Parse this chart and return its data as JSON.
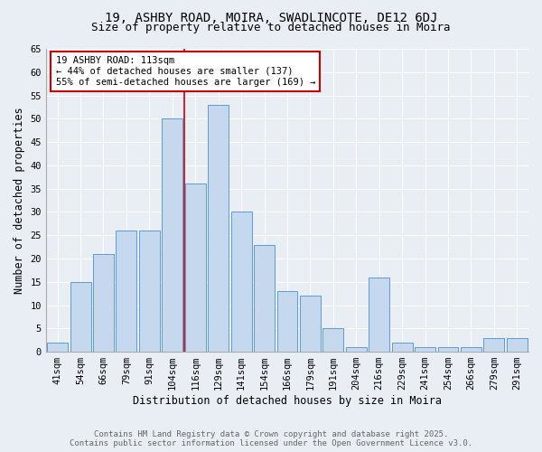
{
  "title_line1": "19, ASHBY ROAD, MOIRA, SWADLINCOTE, DE12 6DJ",
  "title_line2": "Size of property relative to detached houses in Moira",
  "xlabel": "Distribution of detached houses by size in Moira",
  "ylabel": "Number of detached properties",
  "bar_labels": [
    "41sqm",
    "54sqm",
    "66sqm",
    "79sqm",
    "91sqm",
    "104sqm",
    "116sqm",
    "129sqm",
    "141sqm",
    "154sqm",
    "166sqm",
    "179sqm",
    "191sqm",
    "204sqm",
    "216sqm",
    "229sqm",
    "241sqm",
    "254sqm",
    "266sqm",
    "279sqm",
    "291sqm"
  ],
  "bar_values": [
    2,
    15,
    21,
    26,
    26,
    50,
    36,
    53,
    30,
    23,
    13,
    12,
    5,
    1,
    16,
    2,
    1,
    1,
    1,
    3,
    3
  ],
  "bar_color": "#c5d8ed",
  "bar_edge_color": "#5b9bd5",
  "vline_x": 5.5,
  "vline_color": "#cc0000",
  "annotation_title": "19 ASHBY ROAD: 113sqm",
  "annotation_line2": "← 44% of detached houses are smaller (137)",
  "annotation_line3": "55% of semi-detached houses are larger (169) →",
  "annotation_box_facecolor": "#ffffff",
  "annotation_box_edgecolor": "#cc0000",
  "ylim": [
    0,
    65
  ],
  "yticks": [
    0,
    5,
    10,
    15,
    20,
    25,
    30,
    35,
    40,
    45,
    50,
    55,
    60,
    65
  ],
  "background_color": "#e8eef4",
  "grid_color": "#ffffff",
  "footer_line1": "Contains HM Land Registry data © Crown copyright and database right 2025.",
  "footer_line2": "Contains public sector information licensed under the Open Government Licence v3.0.",
  "title_fontsize": 10,
  "subtitle_fontsize": 9,
  "axis_label_fontsize": 8.5,
  "tick_fontsize": 7.5,
  "annotation_fontsize": 7.5,
  "footer_fontsize": 6.5
}
